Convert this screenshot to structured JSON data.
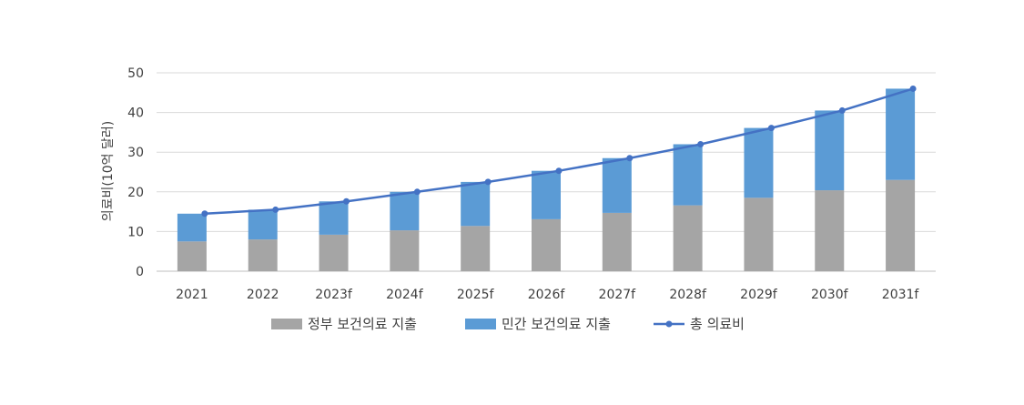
{
  "chart_data": {
    "type": "bar",
    "stacked": true,
    "categories": [
      "2021",
      "2022",
      "2023f",
      "2024f",
      "2025f",
      "2026f",
      "2027f",
      "2028f",
      "2029f",
      "2030f",
      "2031f"
    ],
    "series": [
      {
        "name": "정부 보건의료 지출",
        "type": "bar",
        "color": "#a5a5a5",
        "values": [
          7.5,
          8.0,
          9.2,
          10.3,
          11.4,
          13.1,
          14.7,
          16.6,
          18.5,
          20.4,
          23.0
        ]
      },
      {
        "name": "민간 보건의료 지출",
        "type": "bar",
        "color": "#5b9bd5",
        "values": [
          7.0,
          7.5,
          8.4,
          9.7,
          11.1,
          12.2,
          13.8,
          15.4,
          17.6,
          20.1,
          23.0
        ]
      },
      {
        "name": "총 의료비",
        "type": "line",
        "color": "#4472c4",
        "values": [
          14.5,
          15.5,
          17.6,
          20.0,
          22.5,
          25.3,
          28.5,
          32.0,
          36.1,
          40.5,
          46.0
        ]
      }
    ],
    "ylabel": "의료비(10억 달러)",
    "xlabel": "",
    "ylim": [
      0,
      50
    ],
    "yticks": [
      0,
      10,
      20,
      30,
      40,
      50
    ],
    "grid": true,
    "legend_position": "bottom"
  }
}
